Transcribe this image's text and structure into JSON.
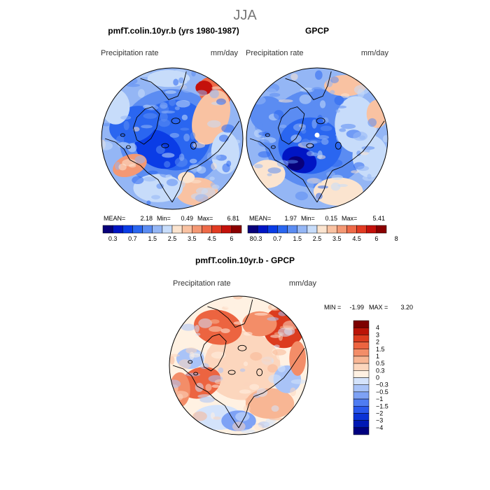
{
  "figure": {
    "season": "JJA"
  },
  "colors": {
    "seq": [
      "#08007a",
      "#0015c4",
      "#0a3ce6",
      "#2a66f0",
      "#5b8cf2",
      "#94b6f5",
      "#c7dcfa",
      "#fbe4cf",
      "#f9c2a2",
      "#f49874",
      "#ee6a48",
      "#e23b22",
      "#c4110b",
      "#8a0000"
    ],
    "div": [
      "#00007f",
      "#0018b4",
      "#0b33d6",
      "#2a58ec",
      "#4f7cf2",
      "#7ea2f5",
      "#a9c3f7",
      "#d4e3fb",
      "#fff1e2",
      "#fcd6bd",
      "#f8b694",
      "#f38d68",
      "#ec6440",
      "#dc3c1f",
      "#bb1408",
      "#7d0000"
    ],
    "coast": "#000000",
    "outline": "#000000"
  },
  "chart_data": [
    {
      "type": "heatmap",
      "title": "pmfT.colin.10yr.b (yrs 1980-1987)",
      "subtitle_left": "Precipitation rate",
      "subtitle_right": "mm/day",
      "stats": {
        "mean_label": "MEAN=",
        "mean": "2.18",
        "min_label": "Min=",
        "min": "0.49",
        "max_label": "Max=",
        "max": "6.81"
      },
      "colorbar": {
        "orientation": "horizontal",
        "ticks": [
          "0.3",
          "0.7",
          "1.5",
          "2.5",
          "3.5",
          "4.5",
          "6",
          "8"
        ]
      }
    },
    {
      "type": "heatmap",
      "title": "GPCP",
      "subtitle_left": "Precipitation rate",
      "subtitle_right": "mm/day",
      "stats": {
        "mean_label": "MEAN=",
        "mean": "1.97",
        "min_label": "Min=",
        "min": "0.15",
        "max_label": "Max=",
        "max": "5.41"
      },
      "colorbar": {
        "orientation": "horizontal",
        "ticks": [
          "0.3",
          "0.7",
          "1.5",
          "2.5",
          "3.5",
          "4.5",
          "6",
          "8"
        ]
      }
    },
    {
      "type": "heatmap",
      "title": "pmfT.colin.10yr.b - GPCP",
      "subtitle_left": "Precipitation rate",
      "subtitle_right": "mm/day",
      "stats": {
        "min_label": "MIN =",
        "min": "-1.99",
        "max_label": "MAX =",
        "max": "3.20"
      },
      "colorbar": {
        "orientation": "vertical",
        "ticks": [
          "4",
          "3",
          "2",
          "1.5",
          "1",
          "0.5",
          "0.3",
          "0",
          "−0.3",
          "−0.5",
          "−1",
          "−1.5",
          "−2",
          "−3",
          "−4"
        ]
      }
    }
  ]
}
